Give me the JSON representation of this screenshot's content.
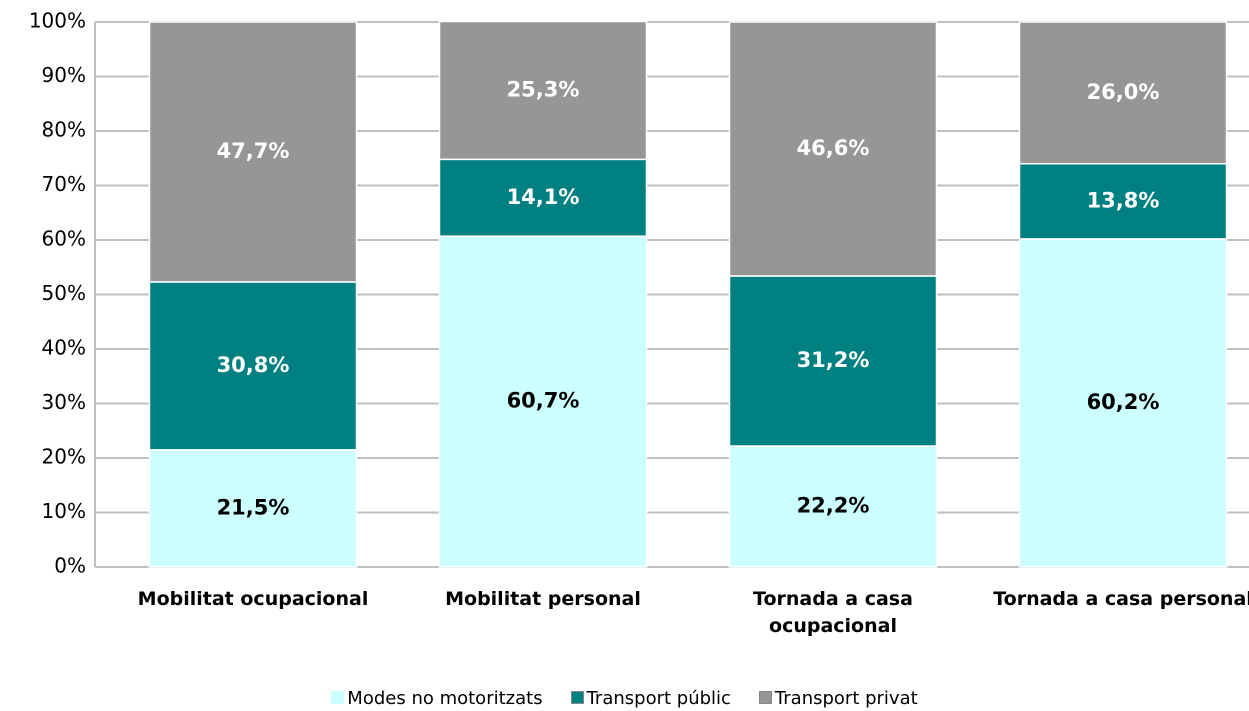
{
  "chart_data": {
    "type": "stacked_bar",
    "categories": [
      "Mobilitat ocupacional",
      "Mobilitat personal",
      "Tornada a casa ocupacional",
      "Tornada a casa personal"
    ],
    "series": [
      {
        "name": "Modes no motoritzats",
        "color": "#ccffff",
        "label_color": "#000000",
        "values": [
          21.5,
          60.7,
          22.2,
          60.2
        ],
        "value_labels": [
          "21,5%",
          "60,7%",
          "22,2%",
          "60,2%"
        ]
      },
      {
        "name": "Transport públic",
        "color": "#008080",
        "label_color": "#ffffff",
        "values": [
          30.8,
          14.1,
          31.2,
          13.8
        ],
        "value_labels": [
          "30,8%",
          "14,1%",
          "31,2%",
          "13,8%"
        ]
      },
      {
        "name": "Transport privat",
        "color": "#969696",
        "label_color": "#ffffff",
        "values": [
          47.7,
          25.3,
          46.6,
          26.0
        ],
        "value_labels": [
          "47,7%",
          "25,3%",
          "46,6%",
          "26,0%"
        ]
      }
    ],
    "ylim": [
      0,
      100
    ],
    "yticks": [
      {
        "value": 0,
        "label": "0%"
      },
      {
        "value": 10,
        "label": "10%"
      },
      {
        "value": 20,
        "label": "20%"
      },
      {
        "value": 30,
        "label": "30%"
      },
      {
        "value": 40,
        "label": "40%"
      },
      {
        "value": 50,
        "label": "50%"
      },
      {
        "value": 60,
        "label": "60%"
      },
      {
        "value": 70,
        "label": "70%"
      },
      {
        "value": 80,
        "label": "80%"
      },
      {
        "value": 90,
        "label": "90%"
      },
      {
        "value": 100,
        "label": "100%"
      }
    ],
    "grid": true,
    "legend": "bottom"
  }
}
